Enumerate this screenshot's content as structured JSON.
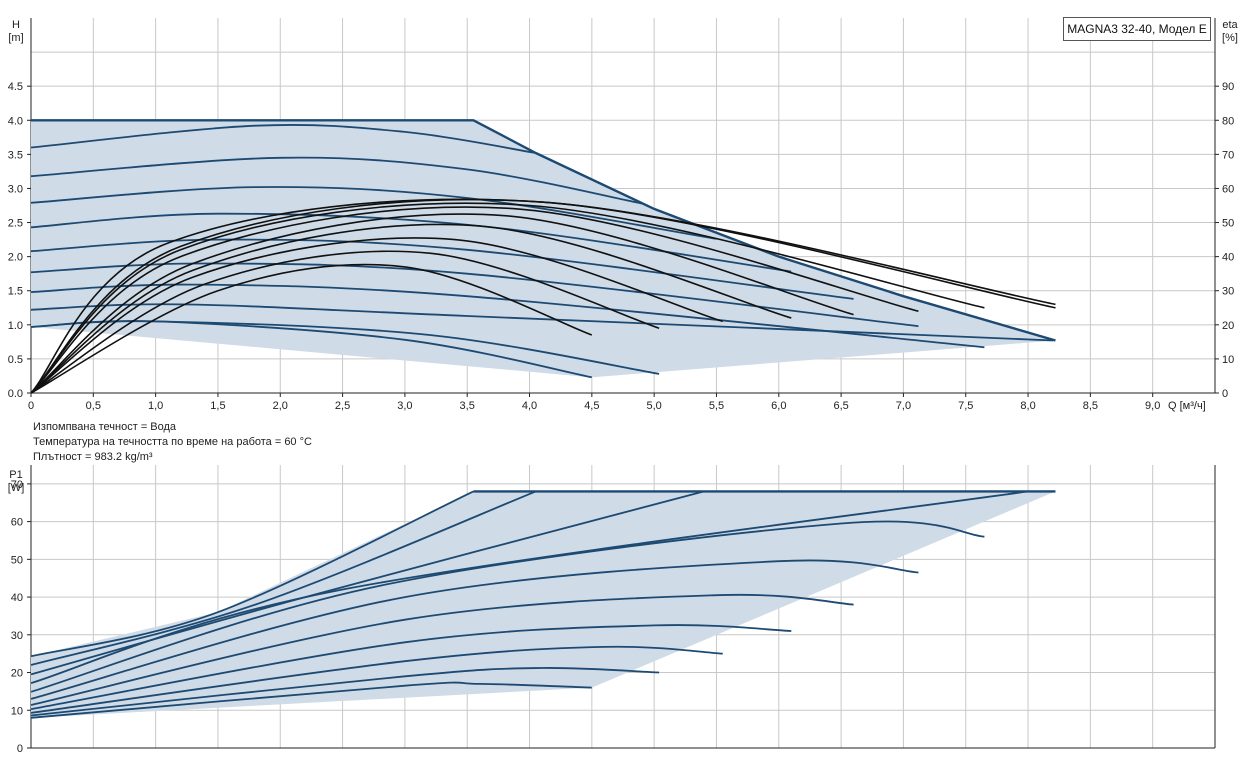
{
  "title": "MAGNA3 32-40, Модел E",
  "info": {
    "liquid": "Изпомпвана течност = Вода",
    "temperature": "Температура на течността по време на работа = 60 °C",
    "density": "Плътност = 983.2 kg/m³"
  },
  "chart_data": [
    {
      "type": "line",
      "xlabel": "Q [м³/ч]",
      "ylabel": "H\n[m]",
      "y2label": "eta\n[%]",
      "xlim": [
        0,
        9.5
      ],
      "ylim": [
        0,
        5.5
      ],
      "y2lim": [
        0,
        110
      ],
      "x_ticks": [
        "0",
        "0,5",
        "1,0",
        "1,5",
        "2,0",
        "2,5",
        "3,0",
        "3,5",
        "4,0",
        "4,5",
        "5,0",
        "5,5",
        "6,0",
        "6,5",
        "7,0",
        "7,5",
        "8,0",
        "8,5",
        "9,0"
      ],
      "y_ticks": [
        "0.0",
        "0.5",
        "1.0",
        "1.5",
        "2.0",
        "2.5",
        "3.0",
        "3.5",
        "4.0",
        "4.5"
      ],
      "y2_ticks": [
        "0",
        "10",
        "20",
        "30",
        "40",
        "50",
        "60",
        "70",
        "80",
        "90"
      ],
      "grid": true,
      "envelope": [
        [
          0,
          4.0
        ],
        [
          3.55,
          4.0
        ],
        [
          4.05,
          3.52
        ],
        [
          5.0,
          2.7
        ],
        [
          6.0,
          2.0
        ],
        [
          7.0,
          1.42
        ],
        [
          8.22,
          0.77
        ],
        [
          4.5,
          0.23
        ],
        [
          0,
          0.97
        ]
      ],
      "head_curves": [
        {
          "x": [
            0,
            1.8,
            3.0,
            4.05
          ],
          "y": [
            3.6,
            3.92,
            3.83,
            3.52
          ]
        },
        {
          "x": [
            0,
            2.0,
            3.5,
            4.9
          ],
          "y": [
            3.18,
            3.45,
            3.28,
            2.78
          ]
        },
        {
          "x": [
            0,
            1.8,
            3.5,
            5.5
          ],
          "y": [
            2.79,
            3.02,
            2.86,
            2.26
          ]
        },
        {
          "x": [
            0,
            1.5,
            3.6,
            6.1
          ],
          "y": [
            2.43,
            2.63,
            2.45,
            1.78
          ]
        },
        {
          "x": [
            0,
            1.5,
            3.5,
            6.6
          ],
          "y": [
            2.08,
            2.25,
            2.1,
            1.38
          ]
        },
        {
          "x": [
            0,
            1.4,
            3.5,
            7.12
          ],
          "y": [
            1.77,
            1.9,
            1.75,
            0.98
          ]
        },
        {
          "x": [
            0,
            1.3,
            3.5,
            7.65
          ],
          "y": [
            1.48,
            1.59,
            1.42,
            0.67
          ]
        },
        {
          "x": [
            0,
            1.2,
            3.5,
            8.2
          ],
          "y": [
            1.22,
            1.3,
            1.13,
            0.77
          ]
        },
        {
          "x": [
            0,
            1.0,
            3.2,
            5.04
          ],
          "y": [
            0.97,
            1.05,
            0.85,
            0.28
          ]
        },
        {
          "x": [
            0,
            1.0,
            3.0,
            4.5
          ],
          "y": [
            0.97,
            1.05,
            0.78,
            0.23
          ]
        }
      ],
      "eta_curves": [
        {
          "x": [
            0,
            1.5,
            3.0,
            4.5
          ],
          "y": [
            0,
            30,
            37,
            17
          ]
        },
        {
          "x": [
            0,
            1.4,
            3.2,
            5.04
          ],
          "y": [
            0,
            32,
            41,
            19
          ]
        },
        {
          "x": [
            0,
            1.3,
            3.4,
            5.55
          ],
          "y": [
            0,
            34,
            45,
            21
          ]
        },
        {
          "x": [
            0,
            1.3,
            3.6,
            6.1
          ],
          "y": [
            0,
            36,
            49,
            22
          ]
        },
        {
          "x": [
            0,
            1.3,
            3.8,
            6.6
          ],
          "y": [
            0,
            38,
            52,
            23
          ]
        },
        {
          "x": [
            0,
            1.2,
            3.9,
            7.12
          ],
          "y": [
            0,
            40,
            54,
            24
          ]
        },
        {
          "x": [
            0,
            1.2,
            4.0,
            7.65
          ],
          "y": [
            0,
            42,
            55,
            25
          ]
        },
        {
          "x": [
            0,
            1.2,
            4.1,
            8.22
          ],
          "y": [
            0,
            43,
            56,
            25
          ]
        },
        {
          "x": [
            0,
            1.1,
            4.1,
            8.22
          ],
          "y": [
            0,
            44,
            56,
            26
          ]
        }
      ]
    },
    {
      "type": "line",
      "xlabel": "",
      "ylabel": "P1\n[W]",
      "xlim": [
        0,
        9.5
      ],
      "ylim": [
        0,
        75
      ],
      "y_ticks": [
        "0",
        "10",
        "20",
        "30",
        "40",
        "50",
        "60",
        "70"
      ],
      "grid": true,
      "envelope": [
        [
          0,
          24.3
        ],
        [
          1.5,
          36
        ],
        [
          3.55,
          68
        ],
        [
          8.22,
          68
        ],
        [
          4.5,
          16
        ],
        [
          0,
          8
        ]
      ],
      "power_curves": [
        {
          "x": [
            0,
            1.5,
            3.55
          ],
          "y": [
            24.3,
            36,
            68
          ]
        },
        {
          "x": [
            0,
            1.8,
            4.05
          ],
          "y": [
            22.0,
            38,
            68
          ]
        },
        {
          "x": [
            0,
            2.2,
            5.4
          ],
          "y": [
            19.5,
            40,
            68
          ]
        },
        {
          "x": [
            0,
            2.5,
            8.0
          ],
          "y": [
            17.2,
            42,
            68
          ]
        },
        {
          "x": [
            0,
            2.8,
            6.5,
            7.65
          ],
          "y": [
            14.9,
            43,
            59.5,
            56
          ]
        },
        {
          "x": [
            0,
            3.0,
            6.0,
            7.12
          ],
          "y": [
            13.0,
            40,
            49.5,
            46.5
          ]
        },
        {
          "x": [
            0,
            3.0,
            5.5,
            6.6
          ],
          "y": [
            11.4,
            34,
            40.5,
            38
          ]
        },
        {
          "x": [
            0,
            3.0,
            5.0,
            6.1
          ],
          "y": [
            10.3,
            28,
            32.5,
            31
          ]
        },
        {
          "x": [
            0,
            3.0,
            4.6,
            5.55
          ],
          "y": [
            9.3,
            23,
            26.8,
            25
          ]
        },
        {
          "x": [
            0,
            3.0,
            4.1,
            5.04
          ],
          "y": [
            8.6,
            19,
            21.2,
            20
          ]
        },
        {
          "x": [
            0,
            3.0,
            3.6,
            4.5
          ],
          "y": [
            8.0,
            16.5,
            17.0,
            16
          ]
        }
      ]
    }
  ]
}
